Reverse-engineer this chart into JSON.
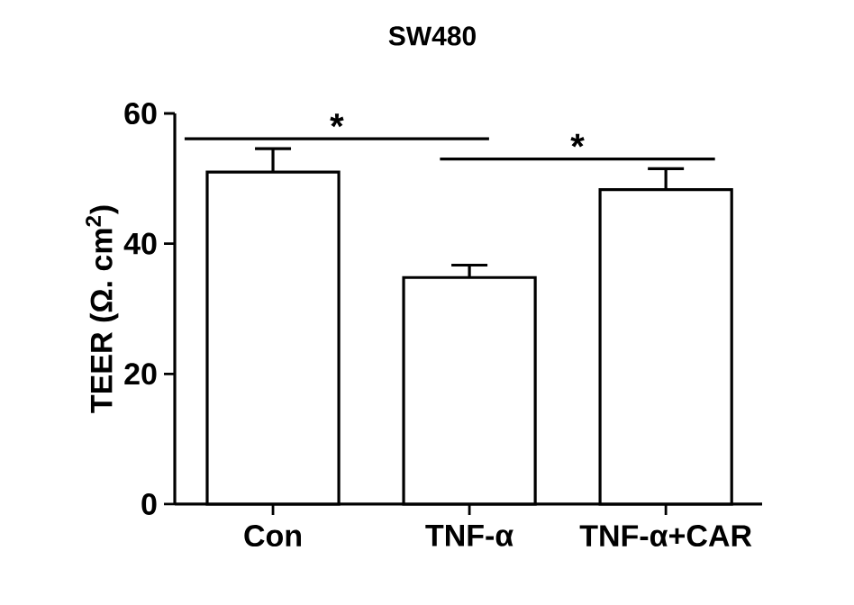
{
  "chart_data": {
    "type": "bar",
    "title": "SW480",
    "ylabel": "TEER (Ω. cm$^{2}$)",
    "categories": [
      "Con",
      "TNF-α",
      "TNF-α+CAR"
    ],
    "values": [
      51.0,
      34.8,
      48.3
    ],
    "errors": [
      3.6,
      1.9,
      3.2
    ],
    "color": "#ffffff",
    "ylim": [
      0,
      60
    ],
    "yticks": [
      0,
      20,
      40,
      60
    ],
    "annotations": [
      "*",
      "*"
    ]
  }
}
